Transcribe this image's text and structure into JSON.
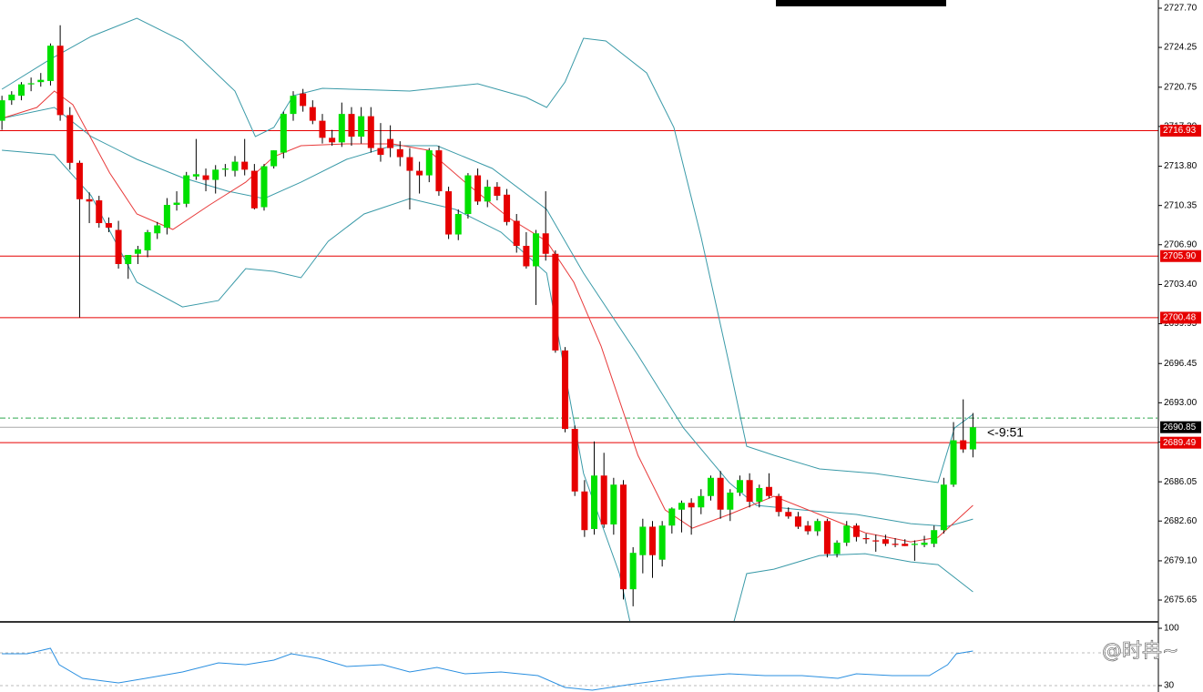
{
  "chart_data": {
    "type": "candlestick",
    "up_color": "#00e000",
    "down_color": "#e60000",
    "wick_color": "#000000",
    "xlim": [
      -0.2,
      119.1
    ],
    "ylim": [
      2673.73,
      2728.42
    ],
    "yticks": [
      {
        "value": 2727.7,
        "label": "2727.70"
      },
      2724.25,
      2720.75,
      {
        "value": 2717.3,
        "label": "2717.30"
      },
      {
        "value": 2713.8,
        "label": "2713.80"
      },
      2710.35,
      {
        "value": 2706.9,
        "label": "2706.90"
      },
      {
        "value": 2703.4,
        "label": "2703.40"
      },
      2699.95,
      2696.45,
      {
        "value": 2693,
        "label": "2693.00"
      },
      2689.55,
      2686.05,
      {
        "value": 2682.6,
        "label": "2682.60"
      },
      {
        "value": 2679.1,
        "label": "2679.10"
      },
      2675.65
    ],
    "open": [
      2717.8,
      2719.6,
      2720.0,
      2721.0,
      2721.2,
      2721.3,
      2724.4,
      2718.3,
      2714.1,
      2710.9,
      2710.8,
      2708.8,
      2708.2,
      2705.2,
      2706.1,
      2706.4,
      2707.9,
      2708.4,
      2710.4,
      2710.5,
      2712.9,
      2713.0,
      2712.6,
      2713.5,
      2713.4,
      2714.2,
      2713.4,
      2710.2,
      2713.8,
      2715.0,
      2718.4,
      2720.2,
      2719.0,
      2717.8,
      2716.3,
      2715.9,
      2718.4,
      2716.4,
      2718.2,
      2715.4,
      2716.2,
      2715.3,
      2714.6,
      2713.4,
      2713.0,
      2715.2,
      2711.6,
      2707.8,
      2709.6,
      2713.0,
      2710.7,
      2712.0,
      2711.3,
      2709.0,
      2706.8,
      2705.0,
      2707.9,
      2706.1,
      2697.6,
      2690.7,
      2685.2,
      2681.9,
      2686.6,
      2682.3,
      2685.8,
      2676.6,
      2679.6,
      2682.1,
      2679.2,
      2682.2,
      2683.6,
      2684.2,
      2683.8,
      2684.8,
      2686.4,
      2683.6,
      2685.1,
      2686.2,
      2684.3,
      2685.6,
      2684.8,
      2683.4,
      2683.0,
      2682.2,
      2681.7,
      2682.6,
      2679.7,
      2680.7,
      2682.2,
      2681.1,
      2680.9,
      2681.0,
      2680.6,
      2680.6,
      2680.5,
      2680.5,
      2680.6,
      2681.8,
      2685.8,
      2689.7,
      2688.9
    ],
    "high": [
      2720.0,
      2720.4,
      2721.2,
      2721.6,
      2722.0,
      2724.6,
      2726.2,
      2719.0,
      2714.3,
      2711.5,
      2711.2,
      2709.3,
      2709.0,
      2706.0,
      2706.8,
      2708.2,
      2708.9,
      2711.0,
      2711.6,
      2713.3,
      2716.2,
      2713.6,
      2713.9,
      2714.0,
      2714.7,
      2716.2,
      2714.0,
      2714.0,
      2715.2,
      2718.6,
      2720.4,
      2720.6,
      2719.6,
      2718.4,
      2717.0,
      2719.4,
      2719.0,
      2719.0,
      2719.0,
      2717.6,
      2717.4,
      2716.0,
      2715.4,
      2714.2,
      2715.4,
      2715.6,
      2712.0,
      2710.0,
      2713.2,
      2713.6,
      2712.6,
      2712.4,
      2711.8,
      2709.6,
      2708.0,
      2708.2,
      2711.6,
      2706.4,
      2697.9,
      2691.0,
      2686.2,
      2689.6,
      2688.6,
      2686.4,
      2686.2,
      2680.3,
      2682.8,
      2682.6,
      2682.6,
      2683.8,
      2684.4,
      2684.6,
      2685.4,
      2686.6,
      2687.0,
      2685.4,
      2686.6,
      2686.8,
      2685.8,
      2686.8,
      2685.0,
      2683.8,
      2683.4,
      2682.6,
      2682.8,
      2682.8,
      2680.9,
      2682.6,
      2682.4,
      2681.5,
      2681.4,
      2681.4,
      2681.1,
      2681.0,
      2680.9,
      2681.3,
      2682.2,
      2686.4,
      2691.3,
      2693.3,
      2692.1
    ],
    "low": [
      2717.0,
      2719.2,
      2719.6,
      2720.4,
      2720.8,
      2720.9,
      2717.8,
      2713.5,
      2700.5,
      2708.8,
      2708.4,
      2708.0,
      2704.8,
      2703.9,
      2705.2,
      2705.8,
      2707.4,
      2707.8,
      2709.9,
      2710.2,
      2712.6,
      2711.6,
      2711.4,
      2712.9,
      2712.9,
      2713.0,
      2710.0,
      2709.9,
      2713.6,
      2714.5,
      2717.8,
      2718.6,
      2717.5,
      2715.8,
      2715.6,
      2715.5,
      2715.6,
      2715.8,
      2715.0,
      2714.2,
      2714.6,
      2713.8,
      2710.0,
      2711.4,
      2712.4,
      2711.2,
      2707.4,
      2707.3,
      2709.2,
      2710.4,
      2710.2,
      2710.8,
      2708.6,
      2706.2,
      2704.8,
      2701.6,
      2705.5,
      2697.4,
      2690.4,
      2684.8,
      2681.2,
      2681.4,
      2682.0,
      2681.4,
      2675.7,
      2675.1,
      2678.0,
      2677.6,
      2678.6,
      2681.5,
      2681.6,
      2681.4,
      2683.2,
      2684.4,
      2682.8,
      2682.6,
      2684.8,
      2683.8,
      2683.8,
      2684.6,
      2683.0,
      2682.8,
      2681.9,
      2681.4,
      2681.3,
      2679.4,
      2679.4,
      2680.4,
      2680.8,
      2680.6,
      2679.9,
      2680.4,
      2680.3,
      2680.4,
      2679.1,
      2680.3,
      2680.3,
      2681.5,
      2685.6,
      2688.6,
      2688.2
    ],
    "close": [
      2719.6,
      2720.1,
      2721.0,
      2721.1,
      2721.4,
      2724.4,
      2718.3,
      2714.1,
      2710.9,
      2710.7,
      2708.8,
      2708.4,
      2705.2,
      2706.0,
      2706.5,
      2708.0,
      2708.6,
      2710.4,
      2710.6,
      2713.0,
      2713.1,
      2712.6,
      2713.5,
      2713.6,
      2714.2,
      2713.5,
      2710.1,
      2713.8,
      2715.2,
      2718.4,
      2720.0,
      2719.1,
      2717.8,
      2716.3,
      2715.9,
      2718.4,
      2716.4,
      2718.2,
      2715.4,
      2714.8,
      2715.4,
      2714.6,
      2713.4,
      2713.0,
      2715.2,
      2711.6,
      2707.8,
      2709.6,
      2713.0,
      2710.7,
      2712.0,
      2711.2,
      2708.9,
      2706.8,
      2705.0,
      2707.9,
      2706.1,
      2697.6,
      2690.7,
      2685.2,
      2681.8,
      2686.6,
      2682.3,
      2685.8,
      2676.6,
      2679.8,
      2682.1,
      2679.6,
      2682.2,
      2683.7,
      2684.2,
      2683.8,
      2684.8,
      2686.4,
      2683.6,
      2685.1,
      2686.2,
      2684.3,
      2685.5,
      2684.8,
      2683.4,
      2683.0,
      2682.1,
      2681.7,
      2682.6,
      2679.7,
      2680.7,
      2682.2,
      2681.2,
      2681.0,
      2680.8,
      2680.6,
      2680.5,
      2680.4,
      2680.6,
      2680.7,
      2681.8,
      2685.8,
      2689.7,
      2688.9,
      2690.85
    ],
    "overlays": [
      {
        "color": "#3a9aa8",
        "x": [
          0,
          5,
          9.2,
          13.9,
          18.6,
          24,
          26.1,
          28,
          30,
          33,
          42,
          49,
          54,
          56.1,
          58,
          59.9,
          62.2,
          66.4,
          69.2,
          72,
          74.9,
          76.7,
          79.5,
          84.2,
          89.9,
          96.4,
          98.1,
          100
        ],
        "values": [
          2720.57,
          2723.22,
          2725.22,
          2726.82,
          2724.82,
          2720.41,
          2716.41,
          2717.21,
          2720.01,
          2720.65,
          2720.41,
          2721.05,
          2719.85,
          2718.97,
          2721.21,
          2725.06,
          2724.82,
          2722.01,
          2717.21,
          2707.6,
          2696.39,
          2689.18,
          2688.38,
          2687.18,
          2686.78,
          2685.98,
          2690.78,
          2691.98
        ]
      },
      {
        "color": "#3a9aa8",
        "x": [
          0,
          5.4,
          9.2,
          13.9,
          18.6,
          23.3,
          27,
          30.8,
          35.5,
          40.2,
          44.8,
          50.5,
          56.1,
          59.9,
          65.5,
          70.2,
          74.9,
          77.7,
          82.4,
          88,
          93.6,
          97.4,
          100
        ],
        "values": [
          2718.01,
          2718.97,
          2716.41,
          2714.41,
          2712.8,
          2711.6,
          2710.96,
          2712.4,
          2714.41,
          2715.61,
          2715.61,
          2713.61,
          2710.0,
          2704.4,
          2697.19,
          2690.78,
          2685.98,
          2683.98,
          2683.58,
          2683.18,
          2682.37,
          2682.13,
          2682.77
        ]
      },
      {
        "color": "#3a9aa8",
        "x": [
          0,
          5.4,
          9.2,
          13.9,
          18.6,
          22.3,
          25.1,
          28,
          30.8,
          33.6,
          37.3,
          42,
          46.7,
          51.4,
          56.1,
          59.9,
          63.6,
          65,
          75,
          76.7,
          79.5,
          84.2,
          88.9,
          93.6,
          96.4,
          100
        ],
        "values": [
          2715.21,
          2714.81,
          2711.2,
          2703.6,
          2701.43,
          2701.99,
          2704.8,
          2704.56,
          2704.0,
          2707.2,
          2709.6,
          2710.96,
          2710.0,
          2708.0,
          2704.4,
          2686.78,
          2677.97,
          2672.5,
          2672.5,
          2677.97,
          2678.37,
          2679.57,
          2679.73,
          2679.01,
          2678.77,
          2676.37
        ]
      },
      {
        "color": "#e83a3a",
        "x": [
          0,
          3.6,
          5.4,
          7.3,
          11.1,
          13.9,
          17.6,
          21.4,
          25.1,
          28,
          30.8,
          35.5,
          40.2,
          43.9,
          47.7,
          52.3,
          56.1,
          58.9,
          61.7,
          65.5,
          68.3,
          71.1,
          74.9,
          79.5,
          84.2,
          88.9,
          93.6,
          96.4,
          100
        ],
        "values": [
          2718.01,
          2718.97,
          2720.41,
          2719.21,
          2713.21,
          2709.6,
          2708.24,
          2710.4,
          2712.4,
          2714.65,
          2715.61,
          2715.77,
          2715.77,
          2715.21,
          2712.4,
          2709.2,
          2707.2,
          2703.6,
          2697.99,
          2688.38,
          2683.58,
          2681.97,
          2683.18,
          2684.78,
          2683.18,
          2681.57,
          2680.77,
          2681.17,
          2683.98
        ]
      }
    ],
    "hlines": [
      {
        "value": 2716.93,
        "label": "2716.93"
      },
      {
        "value": 2705.9,
        "label": "2705.90"
      },
      {
        "value": 2700.48,
        "label": "2700.48"
      },
      {
        "value": 2689.49,
        "label": "2689.49"
      }
    ],
    "hline_color": "#e60000",
    "ask_line": 2691.66,
    "ask_color": "#2fa84f",
    "last_price": {
      "value": 2690.85,
      "label": "2690.85"
    },
    "countdown": "<-9:51",
    "watermark": "@时冉~",
    "oscillator": {
      "color": "#2a8fe0",
      "ylim": [
        22.2,
        107.8
      ],
      "yticks": [
        100,
        30
      ],
      "levels": [
        70,
        30
      ],
      "x": [
        0,
        2.6,
        5,
        5.9,
        8.3,
        12,
        14.8,
        18.6,
        22.3,
        25.1,
        28,
        29.8,
        32.6,
        35.5,
        39.2,
        42,
        44.8,
        47.7,
        51.4,
        55.2,
        58,
        60.8,
        64.5,
        67.4,
        71.1,
        74.9,
        78.6,
        82.4,
        86.1,
        88,
        91.7,
        95.5,
        97.4,
        98.3,
        100
      ],
      "values": [
        68.9,
        68.9,
        75.6,
        55.6,
        38.9,
        33.3,
        38.9,
        46.7,
        57.8,
        55.6,
        61.1,
        68.9,
        63.3,
        53.3,
        55.6,
        46.7,
        52.2,
        44.4,
        46.7,
        42.2,
        27.8,
        24.4,
        31.1,
        35.6,
        41.1,
        44.4,
        42.2,
        42.2,
        38.9,
        44.4,
        42.2,
        42.2,
        55.6,
        68.9,
        72.2
      ]
    }
  }
}
